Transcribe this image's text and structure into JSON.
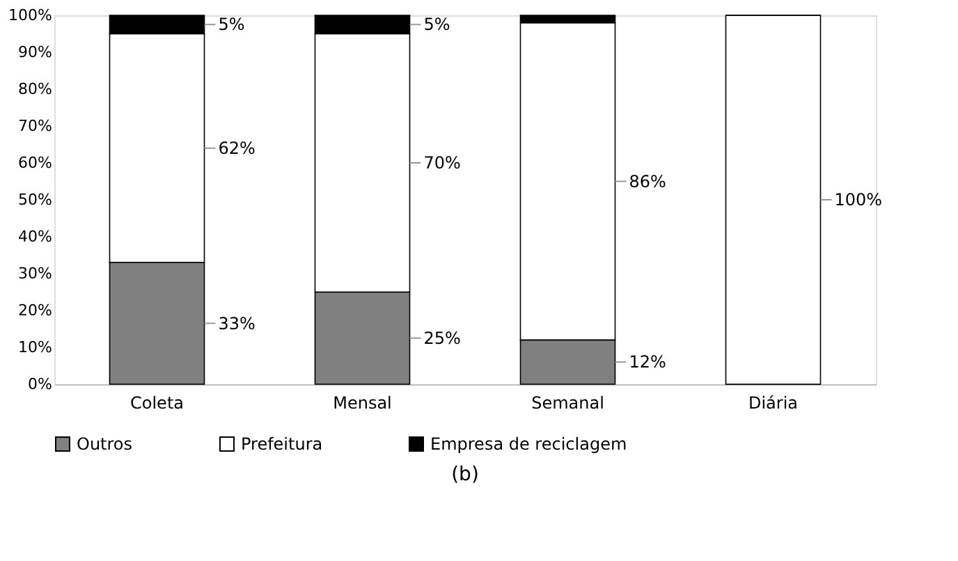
{
  "chart_data": {
    "type": "bar",
    "stacked": true,
    "categories": [
      "Coleta",
      "Mensal",
      "Semanal",
      "Diária"
    ],
    "series": [
      {
        "name": "Outros",
        "color": "#808080",
        "values": [
          33,
          25,
          12,
          0
        ],
        "value_labels": [
          "33%",
          "25%",
          "12%",
          null
        ]
      },
      {
        "name": "Prefeitura",
        "color": "#ffffff",
        "values": [
          62,
          70,
          86,
          100
        ],
        "value_labels": [
          "62%",
          "70%",
          "86%",
          "100%"
        ]
      },
      {
        "name": "Empresa de reciclagem",
        "color": "#000000",
        "values": [
          5,
          5,
          2,
          0
        ],
        "value_labels": [
          "5%",
          "5%",
          null,
          null
        ]
      }
    ],
    "ylim": [
      0,
      100
    ],
    "yticks": [
      {
        "value": 0,
        "label": "0%"
      },
      {
        "value": 10,
        "label": "10%"
      },
      {
        "value": 20,
        "label": "20%"
      },
      {
        "value": 30,
        "label": "30%"
      },
      {
        "value": 40,
        "label": "40%"
      },
      {
        "value": 50,
        "label": "50%"
      },
      {
        "value": 60,
        "label": "60%"
      },
      {
        "value": 70,
        "label": "70%"
      },
      {
        "value": 80,
        "label": "80%"
      },
      {
        "value": 90,
        "label": "90%"
      },
      {
        "value": 100,
        "label": "100%"
      }
    ],
    "legend": "bottom",
    "grid": false,
    "annotations": [
      "(b)"
    ]
  }
}
